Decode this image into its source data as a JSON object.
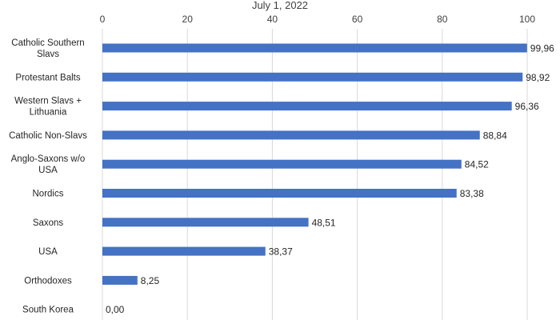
{
  "chart_data": {
    "type": "bar",
    "orientation": "horizontal",
    "title": "July 1, 2022",
    "categories": [
      "Catholic Southern Slavs",
      "Protestant Balts",
      "Western Slavs + Lithuania",
      "Catholic Non-Slavs",
      "Anglo-Saxons w/o USA",
      "Nordics",
      "Saxons",
      "USA",
      "Orthodoxes",
      "South Korea"
    ],
    "category_lines": [
      [
        "Catholic Southern",
        "Slavs"
      ],
      [
        "Protestant Balts"
      ],
      [
        "Western Slavs +",
        "Lithuania"
      ],
      [
        "Catholic Non-Slavs"
      ],
      [
        "Anglo-Saxons w/o",
        "USA"
      ],
      [
        "Nordics"
      ],
      [
        "Saxons"
      ],
      [
        "USA"
      ],
      [
        "Orthodoxes"
      ],
      [
        "South Korea"
      ]
    ],
    "values": [
      99.96,
      98.92,
      96.36,
      88.84,
      84.52,
      83.38,
      48.51,
      38.37,
      8.25,
      0.0
    ],
    "value_labels": [
      "99,96",
      "98,92",
      "96,36",
      "88,84",
      "84,52",
      "83,38",
      "48,51",
      "38,37",
      "8,25",
      "0,00"
    ],
    "xlim": [
      0,
      100
    ],
    "xticks": [
      0,
      20,
      40,
      60,
      80,
      100
    ],
    "xaxis_position": "top",
    "grid": true,
    "legend": "none",
    "bar_color": "#4472c4"
  }
}
